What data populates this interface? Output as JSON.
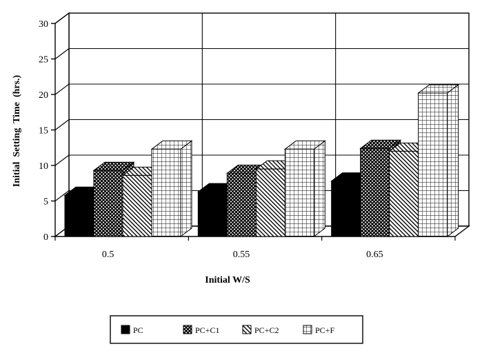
{
  "chart_data": {
    "type": "bar",
    "three_d": true,
    "categories": [
      "0.5",
      "0.55",
      "0.65"
    ],
    "series": [
      {
        "name": "PC",
        "values": [
          5.8,
          6.3,
          7.8
        ],
        "pattern": "solid-black"
      },
      {
        "name": "PC+C1",
        "values": [
          9.3,
          8.9,
          12.4
        ],
        "pattern": "dense-crosshatch"
      },
      {
        "name": "PC+C2",
        "values": [
          8.6,
          9.5,
          12.0
        ],
        "pattern": "diagonal-stripes"
      },
      {
        "name": "PC+F",
        "values": [
          12.3,
          12.3,
          20.2
        ],
        "pattern": "square-grid"
      }
    ],
    "xlabel": "Initial W/S",
    "ylabel": "Initial  Setting  Time  (hrs.)",
    "ylim": [
      0,
      30
    ],
    "yticks": [
      "0",
      "5",
      "10",
      "15",
      "20",
      "25",
      "30"
    ],
    "grid": true,
    "legend_position": "bottom"
  }
}
